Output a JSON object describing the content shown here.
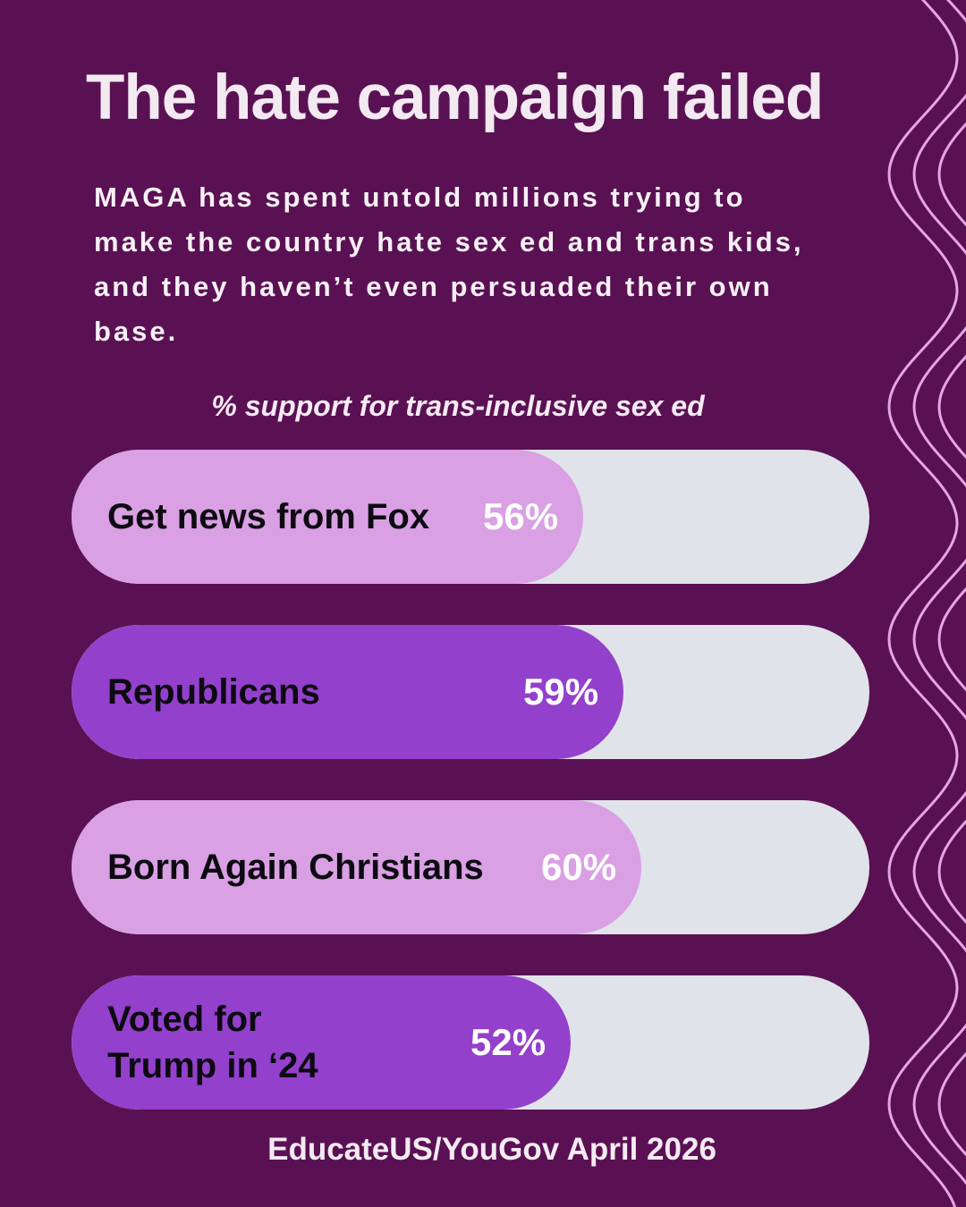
{
  "title": "The hate campaign failed",
  "subtitle": "MAGA has spent untold millions trying to make the country hate sex ed and trans kids, and they haven’t even persuaded their own base.",
  "source": "EducateUS/YouGov April 2026",
  "colors": {
    "background": "#5a1153",
    "track": "#e1e3ea",
    "fill_light": "#d9a0e3",
    "fill_dark": "#9340cc",
    "wave": "#e3a6e8"
  },
  "chart_data": {
    "type": "bar",
    "orientation": "horizontal",
    "title": "% support for trans-inclusive sex ed",
    "categories": [
      "Get news from Fox",
      "Republicans",
      "Born Again Christians",
      "Voted for Trump in ‘24"
    ],
    "values": [
      56,
      59,
      60,
      52
    ],
    "value_labels": [
      "56%",
      "59%",
      "60%",
      "52%"
    ],
    "bar_colors": [
      "#d9a0e3",
      "#9340cc",
      "#d9a0e3",
      "#9340cc"
    ]
  }
}
